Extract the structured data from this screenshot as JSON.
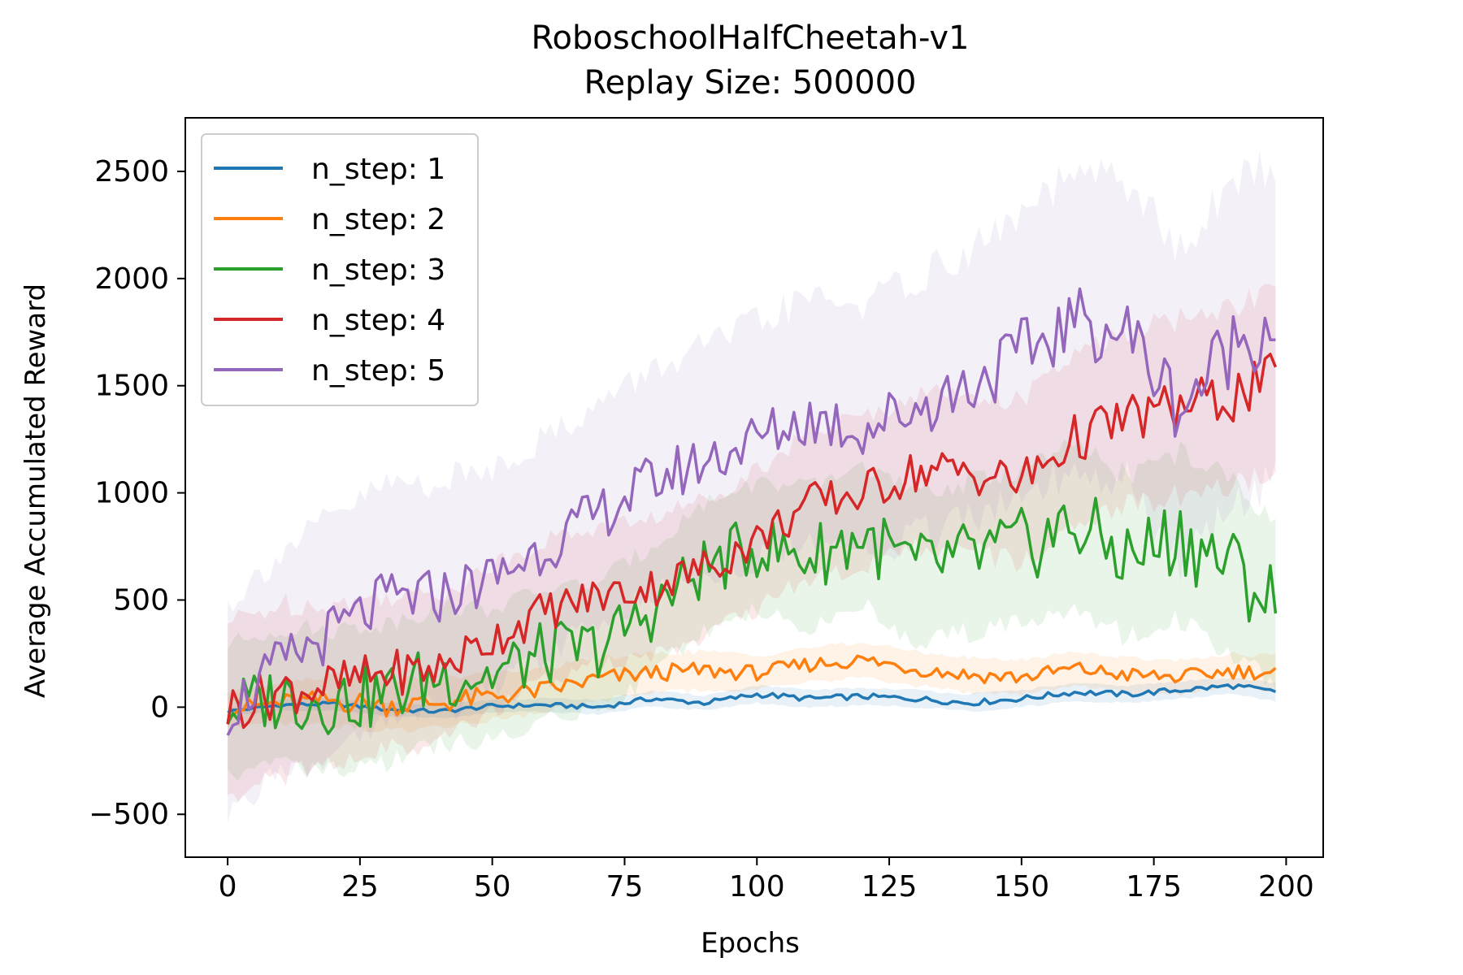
{
  "chart_data": {
    "type": "line",
    "title": "RoboschoolHalfCheetah-v1",
    "subtitle": "Replay Size: 500000",
    "xlabel": "Epochs",
    "ylabel": "Average Accumulated Reward",
    "xlim": [
      -8,
      207
    ],
    "ylim": [
      -700,
      2750
    ],
    "x_ticks": [
      0,
      25,
      50,
      75,
      100,
      125,
      150,
      175,
      200
    ],
    "x_tick_labels": [
      "0",
      "25",
      "50",
      "75",
      "100",
      "125",
      "150",
      "175",
      "200"
    ],
    "y_ticks": [
      -500,
      0,
      500,
      1000,
      1500,
      2000,
      2500
    ],
    "y_tick_labels": [
      "−500",
      "0",
      "500",
      "1000",
      "1500",
      "2000",
      "2500"
    ],
    "legend_position": "upper-left",
    "grid": false,
    "x": [
      0,
      10,
      20,
      30,
      40,
      50,
      60,
      70,
      80,
      90,
      100,
      110,
      120,
      130,
      140,
      150,
      160,
      170,
      180,
      190,
      198
    ],
    "series": [
      {
        "name": "n_step: 1",
        "color": "#1f77b4",
        "values": [
          -20,
          10,
          15,
          -10,
          -20,
          5,
          10,
          0,
          40,
          20,
          60,
          40,
          50,
          40,
          20,
          40,
          70,
          60,
          80,
          100,
          70
        ],
        "band": [
          20,
          25,
          30,
          30,
          30,
          30,
          30,
          35,
          35,
          35,
          40,
          40,
          40,
          40,
          40,
          40,
          40,
          40,
          40,
          40,
          40
        ]
      },
      {
        "name": "n_step: 2",
        "color": "#ff7f0e",
        "values": [
          -10,
          20,
          30,
          10,
          20,
          50,
          80,
          130,
          160,
          170,
          160,
          200,
          220,
          180,
          150,
          140,
          180,
          150,
          140,
          170,
          160
        ],
        "band": [
          80,
          100,
          120,
          120,
          110,
          110,
          100,
          100,
          90,
          90,
          80,
          80,
          80,
          80,
          80,
          80,
          80,
          80,
          80,
          80,
          80
        ]
      },
      {
        "name": "n_step: 3",
        "color": "#2ca02c",
        "values": [
          -10,
          50,
          30,
          60,
          150,
          150,
          250,
          280,
          450,
          650,
          750,
          700,
          800,
          650,
          700,
          750,
          850,
          700,
          800,
          650,
          480
        ],
        "band": [
          300,
          320,
          330,
          330,
          320,
          310,
          300,
          300,
          300,
          300,
          300,
          320,
          330,
          340,
          350,
          360,
          370,
          380,
          390,
          400,
          400
        ]
      },
      {
        "name": "n_step: 4",
        "color": "#d62728",
        "values": [
          -10,
          80,
          100,
          160,
          180,
          320,
          450,
          520,
          560,
          650,
          780,
          950,
          1000,
          1100,
          1100,
          1050,
          1250,
          1350,
          1400,
          1450,
          1530
        ],
        "band": [
          400,
          400,
          380,
          360,
          350,
          340,
          330,
          320,
          320,
          320,
          330,
          340,
          350,
          360,
          370,
          380,
          390,
          400,
          410,
          420,
          430
        ]
      },
      {
        "name": "n_step: 5",
        "color": "#9467bd",
        "values": [
          -20,
          200,
          350,
          500,
          520,
          600,
          750,
          900,
          1050,
          1150,
          1250,
          1350,
          1300,
          1400,
          1500,
          1650,
          1800,
          1750,
          1400,
          1700,
          1800
        ],
        "band": [
          500,
          520,
          540,
          540,
          530,
          520,
          510,
          510,
          520,
          530,
          540,
          560,
          580,
          600,
          620,
          650,
          680,
          700,
          720,
          740,
          750
        ]
      }
    ]
  }
}
